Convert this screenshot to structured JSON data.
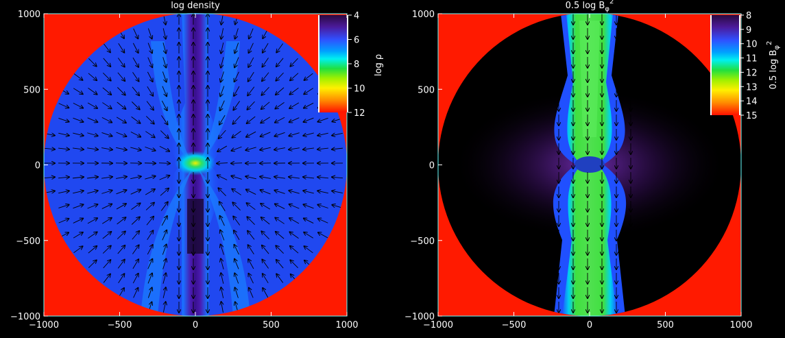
{
  "chart_data": [
    {
      "type": "heatmap",
      "title": "log density",
      "colorbar": {
        "label": "log ρ",
        "ticks": [
          "4",
          "6",
          "8",
          "10",
          "12"
        ],
        "range": [
          4,
          12
        ]
      },
      "xlim": [
        -1000,
        1000
      ],
      "ylim": [
        -1000,
        1000
      ],
      "xticks": [
        "−1000",
        "−500",
        "0",
        "500",
        "1000"
      ],
      "yticks": [
        "1000",
        "500",
        "0",
        "−500",
        "−1000"
      ],
      "overlay": "velocity vectors",
      "field": "low density bipolar jet along vertical axis, dense core at origin, blue ambient medium inside circular domain"
    },
    {
      "type": "heatmap",
      "title": "0.5 log B",
      "title_sub": "φ",
      "title_sup": "2",
      "colorbar": {
        "label": "0.5 log B",
        "label_sub": "φ",
        "label_sup": "2",
        "ticks": [
          "8",
          "9",
          "10",
          "11",
          "12",
          "13",
          "14",
          "15"
        ],
        "range": [
          8,
          15
        ]
      },
      "xlim": [
        -1000,
        1000
      ],
      "ylim": [
        -1000,
        1000
      ],
      "xticks": [
        "−1000",
        "−500",
        "0",
        "500",
        "1000"
      ],
      "yticks": [
        "1000",
        "500",
        "0",
        "−500",
        "−1000"
      ],
      "overlay": "velocity vectors",
      "field": "green/cyan magnetic jet column along vertical axis, dark surroundings inside circular domain"
    }
  ],
  "colors": {
    "background": "#000000",
    "outside_domain": "#ff1a00",
    "frame": "#66ffff"
  }
}
